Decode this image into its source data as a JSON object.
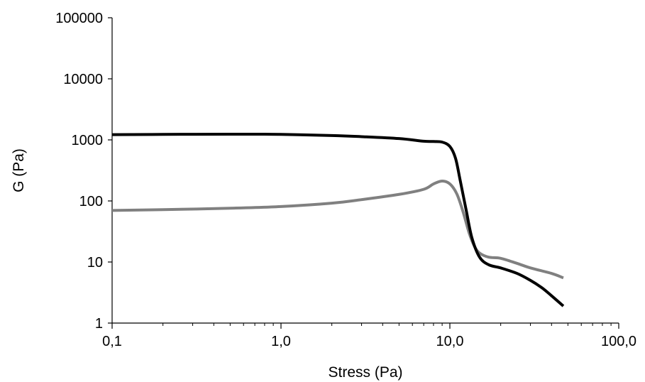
{
  "chart_data": {
    "type": "line",
    "title": "",
    "xlabel": "Stress (Pa)",
    "ylabel": "G (Pa)",
    "xscale": "log",
    "yscale": "log",
    "xlim": [
      0.1,
      100
    ],
    "ylim": [
      1,
      100000
    ],
    "x_ticks": [
      0.1,
      1,
      10,
      100
    ],
    "x_tick_labels": [
      "0,1",
      "1,0",
      "10,0",
      "100,0"
    ],
    "y_ticks": [
      1,
      10,
      100,
      1000,
      10000,
      100000
    ],
    "y_tick_labels": [
      "1",
      "10",
      "100",
      "1000",
      "10000",
      "100000"
    ],
    "grid": false,
    "legend": "none",
    "series": [
      {
        "color": "#000000",
        "x": [
          0.1,
          0.2,
          0.5,
          1.0,
          2.0,
          3.0,
          5.0,
          7.0,
          8.0,
          9.0,
          10.0,
          10.8,
          11.5,
          12.5,
          13.5,
          15.0,
          17.0,
          20.0,
          25.0,
          30.0,
          35.0,
          40.0,
          47.0
        ],
        "values": [
          1220,
          1230,
          1240,
          1230,
          1180,
          1130,
          1050,
          950,
          940,
          920,
          780,
          500,
          220,
          70,
          25,
          12,
          9,
          8,
          6.5,
          5,
          3.8,
          2.8,
          1.9
        ]
      },
      {
        "color": "#808080",
        "x": [
          0.1,
          0.2,
          0.5,
          1.0,
          2.0,
          3.0,
          5.0,
          7.0,
          8.0,
          9.0,
          10.0,
          11.0,
          12.0,
          13.0,
          14.0,
          15.0,
          17.0,
          20.0,
          25.0,
          30.0,
          40.0,
          47.0
        ],
        "values": [
          70,
          72,
          76,
          81,
          92,
          105,
          128,
          155,
          190,
          212,
          190,
          130,
          65,
          30,
          18,
          14,
          12,
          11.5,
          9.5,
          8,
          6.5,
          5.5
        ]
      }
    ]
  }
}
